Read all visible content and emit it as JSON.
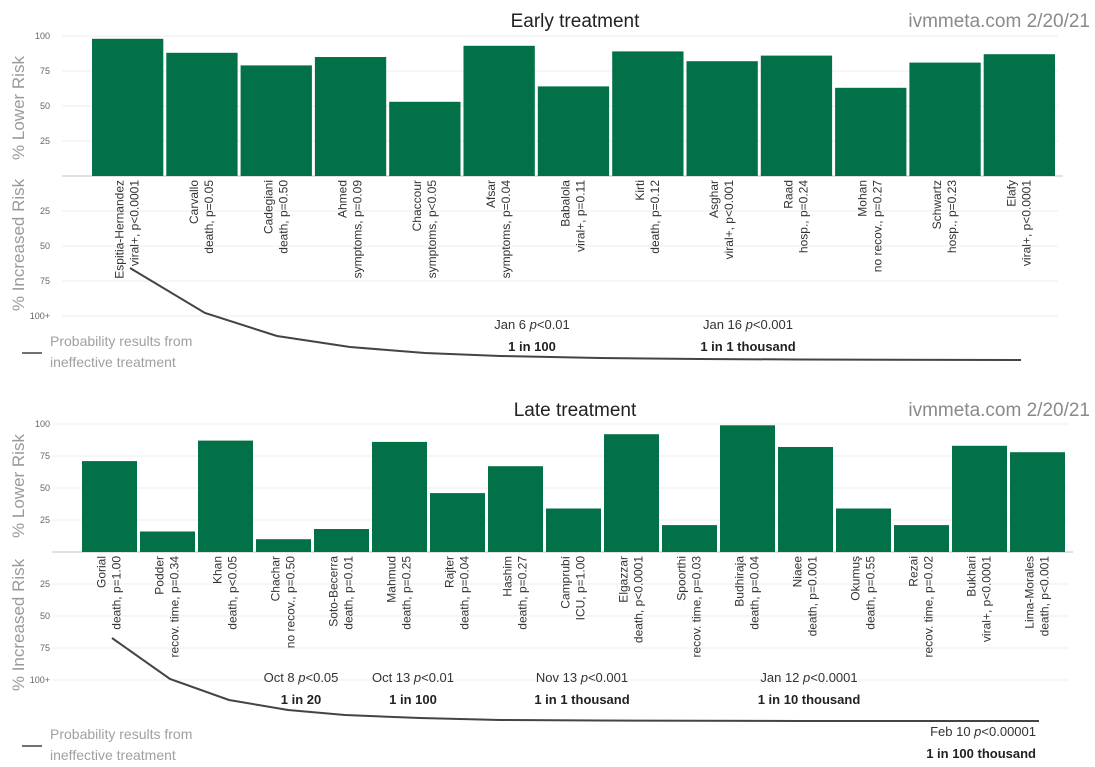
{
  "chart_data": [
    {
      "type": "bar",
      "title": "Early treatment",
      "watermark": "ivmmeta.com 2/20/21",
      "ylabel_upper": "% Lower Risk",
      "ylabel_lower": "% Increased Risk",
      "upper_ticks": [
        "100",
        "75",
        "50",
        "25"
      ],
      "lower_ticks": [
        "25",
        "50",
        "75",
        "100+"
      ],
      "ylim": [
        0,
        100
      ],
      "bar_color": "#027148",
      "curve_color": "#444444",
      "studies": [
        {
          "name": "Espitia-Hernandez",
          "detail": "viral+, p<0.0001",
          "value": 98
        },
        {
          "name": "Carvallo",
          "detail": "death, p=0.05",
          "value": 88
        },
        {
          "name": "Cadegiani",
          "detail": "death, p=0.50",
          "value": 79
        },
        {
          "name": "Ahmed",
          "detail": "symptoms, p=0.09",
          "value": 85
        },
        {
          "name": "Chaccour",
          "detail": "symptoms, p<0.05",
          "value": 53
        },
        {
          "name": "Afsar",
          "detail": "symptoms, p=0.04",
          "value": 93
        },
        {
          "name": "Babalola",
          "detail": "viral+, p=0.11",
          "value": 64
        },
        {
          "name": "Kirti",
          "detail": "death, p=0.12",
          "value": 89
        },
        {
          "name": "Asghar",
          "detail": "viral+, p<0.001",
          "value": 82
        },
        {
          "name": "Raad",
          "detail": "hosp., p=0.24",
          "value": 86
        },
        {
          "name": "Mohan",
          "detail": "no recov., p=0.27",
          "value": 63
        },
        {
          "name": "Schwartz",
          "detail": "hosp., p=0.23",
          "value": 81
        },
        {
          "name": "Elafy",
          "detail": "viral+, p<0.0001",
          "value": 87
        }
      ],
      "annotations": [
        {
          "date": "Jan 6",
          "p": "<0.01",
          "prob": "1 in 100"
        },
        {
          "date": "Jan 16",
          "p": "<0.001",
          "prob": "1 in 1 thousand"
        }
      ],
      "legend": [
        "Probability results from",
        "ineffective treatment"
      ]
    },
    {
      "type": "bar",
      "title": "Late treatment",
      "watermark": "ivmmeta.com 2/20/21",
      "ylabel_upper": "% Lower Risk",
      "ylabel_lower": "% Increased Risk",
      "upper_ticks": [
        "100",
        "75",
        "50",
        "25"
      ],
      "lower_ticks": [
        "25",
        "50",
        "75",
        "100+"
      ],
      "ylim": [
        0,
        100
      ],
      "bar_color": "#027148",
      "curve_color": "#444444",
      "studies": [
        {
          "name": "Gorial",
          "detail": "death, p=1.00",
          "value": 71
        },
        {
          "name": "Podder",
          "detail": "recov. time, p=0.34",
          "value": 16
        },
        {
          "name": "Khan",
          "detail": "death, p<0.05",
          "value": 87
        },
        {
          "name": "Chachar",
          "detail": "no recov., p=0.50",
          "value": 10
        },
        {
          "name": "Soto-Becerra",
          "detail": "death, p=0.01",
          "value": 18
        },
        {
          "name": "Mahmud",
          "detail": "death, p=0.25",
          "value": 86
        },
        {
          "name": "Rajter",
          "detail": "death, p=0.04",
          "value": 46
        },
        {
          "name": "Hashim",
          "detail": "death, p=0.27",
          "value": 67
        },
        {
          "name": "Camprubí",
          "detail": "ICU, p=1.00",
          "value": 34
        },
        {
          "name": "Elgazzar",
          "detail": "death, p<0.0001",
          "value": 92
        },
        {
          "name": "Spoorthi",
          "detail": "recov. time, p=0.03",
          "value": 21
        },
        {
          "name": "Budhiraja",
          "detail": "death, p=0.04",
          "value": 99
        },
        {
          "name": "Niaee",
          "detail": "death, p=0.001",
          "value": 82
        },
        {
          "name": "Okumuş",
          "detail": "death, p=0.55",
          "value": 34
        },
        {
          "name": "Rezai",
          "detail": "recov. time, p=0.02",
          "value": 21
        },
        {
          "name": "Bukhari",
          "detail": "viral+, p<0.0001",
          "value": 83
        },
        {
          "name": "Lima-Morales",
          "detail": "death, p<0.001",
          "value": 78
        }
      ],
      "annotations": [
        {
          "date": "Oct 8",
          "p": "<0.05",
          "prob": "1 in 20"
        },
        {
          "date": "Oct 13",
          "p": "<0.01",
          "prob": "1 in 100"
        },
        {
          "date": "Nov 13",
          "p": "<0.001",
          "prob": "1 in 1 thousand"
        },
        {
          "date": "Jan 12",
          "p": "<0.0001",
          "prob": "1 in 10 thousand"
        },
        {
          "date": "Feb 10",
          "p": "<0.00001",
          "prob": "1 in 100 thousand"
        }
      ],
      "legend": [
        "Probability results from",
        "ineffective treatment"
      ]
    }
  ]
}
